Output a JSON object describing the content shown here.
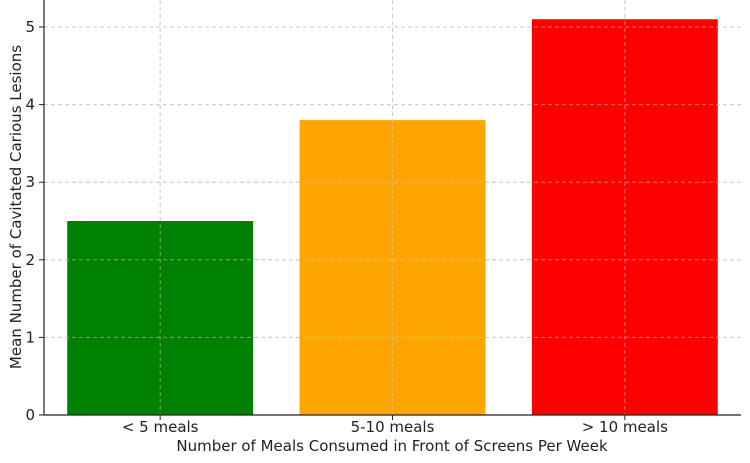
{
  "chart_data": {
    "type": "bar",
    "categories": [
      "< 5 meals",
      "5-10 meals",
      "> 10 meals"
    ],
    "values": [
      2.5,
      3.8,
      5.1
    ],
    "colors": [
      "#008000",
      "#FFA500",
      "#FF0000"
    ],
    "xlabel": "Number of Meals Consumed in Front of Screens Per Week",
    "ylabel": "Mean Number of Cavitated Carious Lesions",
    "ylim": [
      0,
      5.35
    ],
    "yticks": [
      0,
      1,
      2,
      3,
      4,
      5
    ],
    "grid": true
  }
}
